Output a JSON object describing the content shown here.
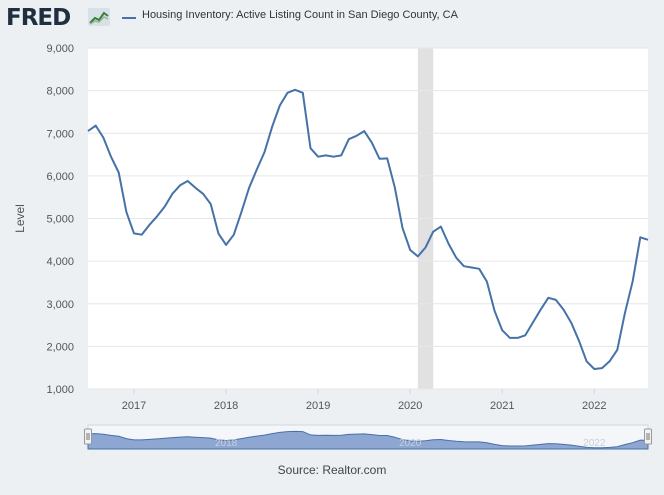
{
  "header": {
    "logo_text": "FRED",
    "logo_icon": "line-chart-icon",
    "series_title": "Housing Inventory: Active Listing Count in San Diego County, CA"
  },
  "source": "Source: Realtor.com",
  "colors": {
    "line": "#4572a7",
    "recession": "#e1e1e1",
    "plot_bg": "#ffffff",
    "page_bg": "#ecf0f3",
    "navigator_fill": "#6b8bc4"
  },
  "chart_data": {
    "type": "line",
    "title": "",
    "xlabel": "",
    "ylabel": "Level",
    "ylim": [
      1000,
      9000
    ],
    "xlim": [
      "2016-07",
      "2022-08"
    ],
    "y_ticks": [
      "1,000",
      "2,000",
      "3,000",
      "4,000",
      "5,000",
      "6,000",
      "7,000",
      "8,000",
      "9,000"
    ],
    "x_ticks": [
      "2017",
      "2018",
      "2019",
      "2020",
      "2021",
      "2022"
    ],
    "grid": true,
    "recession_shading": [
      [
        "2020-02",
        "2020-04"
      ]
    ],
    "series": [
      {
        "name": "Housing Inventory: Active Listing Count in San Diego County, CA",
        "x": [
          "2016-07",
          "2016-08",
          "2016-09",
          "2016-10",
          "2016-11",
          "2016-12",
          "2017-01",
          "2017-02",
          "2017-03",
          "2017-04",
          "2017-05",
          "2017-06",
          "2017-07",
          "2017-08",
          "2017-09",
          "2017-10",
          "2017-11",
          "2017-12",
          "2018-01",
          "2018-02",
          "2018-03",
          "2018-04",
          "2018-05",
          "2018-06",
          "2018-07",
          "2018-08",
          "2018-09",
          "2018-10",
          "2018-11",
          "2018-12",
          "2019-01",
          "2019-02",
          "2019-03",
          "2019-04",
          "2019-05",
          "2019-06",
          "2019-07",
          "2019-08",
          "2019-09",
          "2019-10",
          "2019-11",
          "2019-12",
          "2020-01",
          "2020-02",
          "2020-03",
          "2020-04",
          "2020-05",
          "2020-06",
          "2020-07",
          "2020-08",
          "2020-09",
          "2020-10",
          "2020-11",
          "2020-12",
          "2021-01",
          "2021-02",
          "2021-03",
          "2021-04",
          "2021-05",
          "2021-06",
          "2021-07",
          "2021-08",
          "2021-09",
          "2021-10",
          "2021-11",
          "2021-12",
          "2022-01",
          "2022-02",
          "2022-03",
          "2022-04",
          "2022-05",
          "2022-06",
          "2022-07",
          "2022-08"
        ],
        "values": [
          7050,
          7180,
          6900,
          6450,
          6080,
          5150,
          4650,
          4620,
          4850,
          5050,
          5280,
          5580,
          5780,
          5880,
          5720,
          5580,
          5340,
          4650,
          4380,
          4620,
          5150,
          5720,
          6150,
          6550,
          7150,
          7650,
          7950,
          8020,
          7950,
          6650,
          6450,
          6480,
          6450,
          6480,
          6860,
          6940,
          7050,
          6780,
          6400,
          6410,
          5730,
          4780,
          4260,
          4110,
          4320,
          4690,
          4810,
          4410,
          4080,
          3880,
          3850,
          3820,
          3520,
          2830,
          2380,
          2200,
          2200,
          2260,
          2560,
          2860,
          3140,
          3090,
          2860,
          2550,
          2130,
          1650,
          1470,
          1490,
          1650,
          1920,
          2790,
          3530,
          4560,
          4500
        ]
      }
    ],
    "navigator": {
      "x_labels": [
        "2018",
        "2020",
        "2022"
      ]
    }
  }
}
